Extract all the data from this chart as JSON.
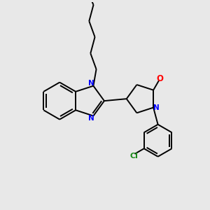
{
  "background_color": "#e8e8e8",
  "bond_color": "#000000",
  "n_color": "#0000ff",
  "o_color": "#ff0000",
  "cl_color": "#1a8a1a",
  "line_width": 1.4,
  "figsize": [
    3.0,
    3.0
  ],
  "dpi": 100,
  "xlim": [
    0,
    10
  ],
  "ylim": [
    0,
    10
  ]
}
